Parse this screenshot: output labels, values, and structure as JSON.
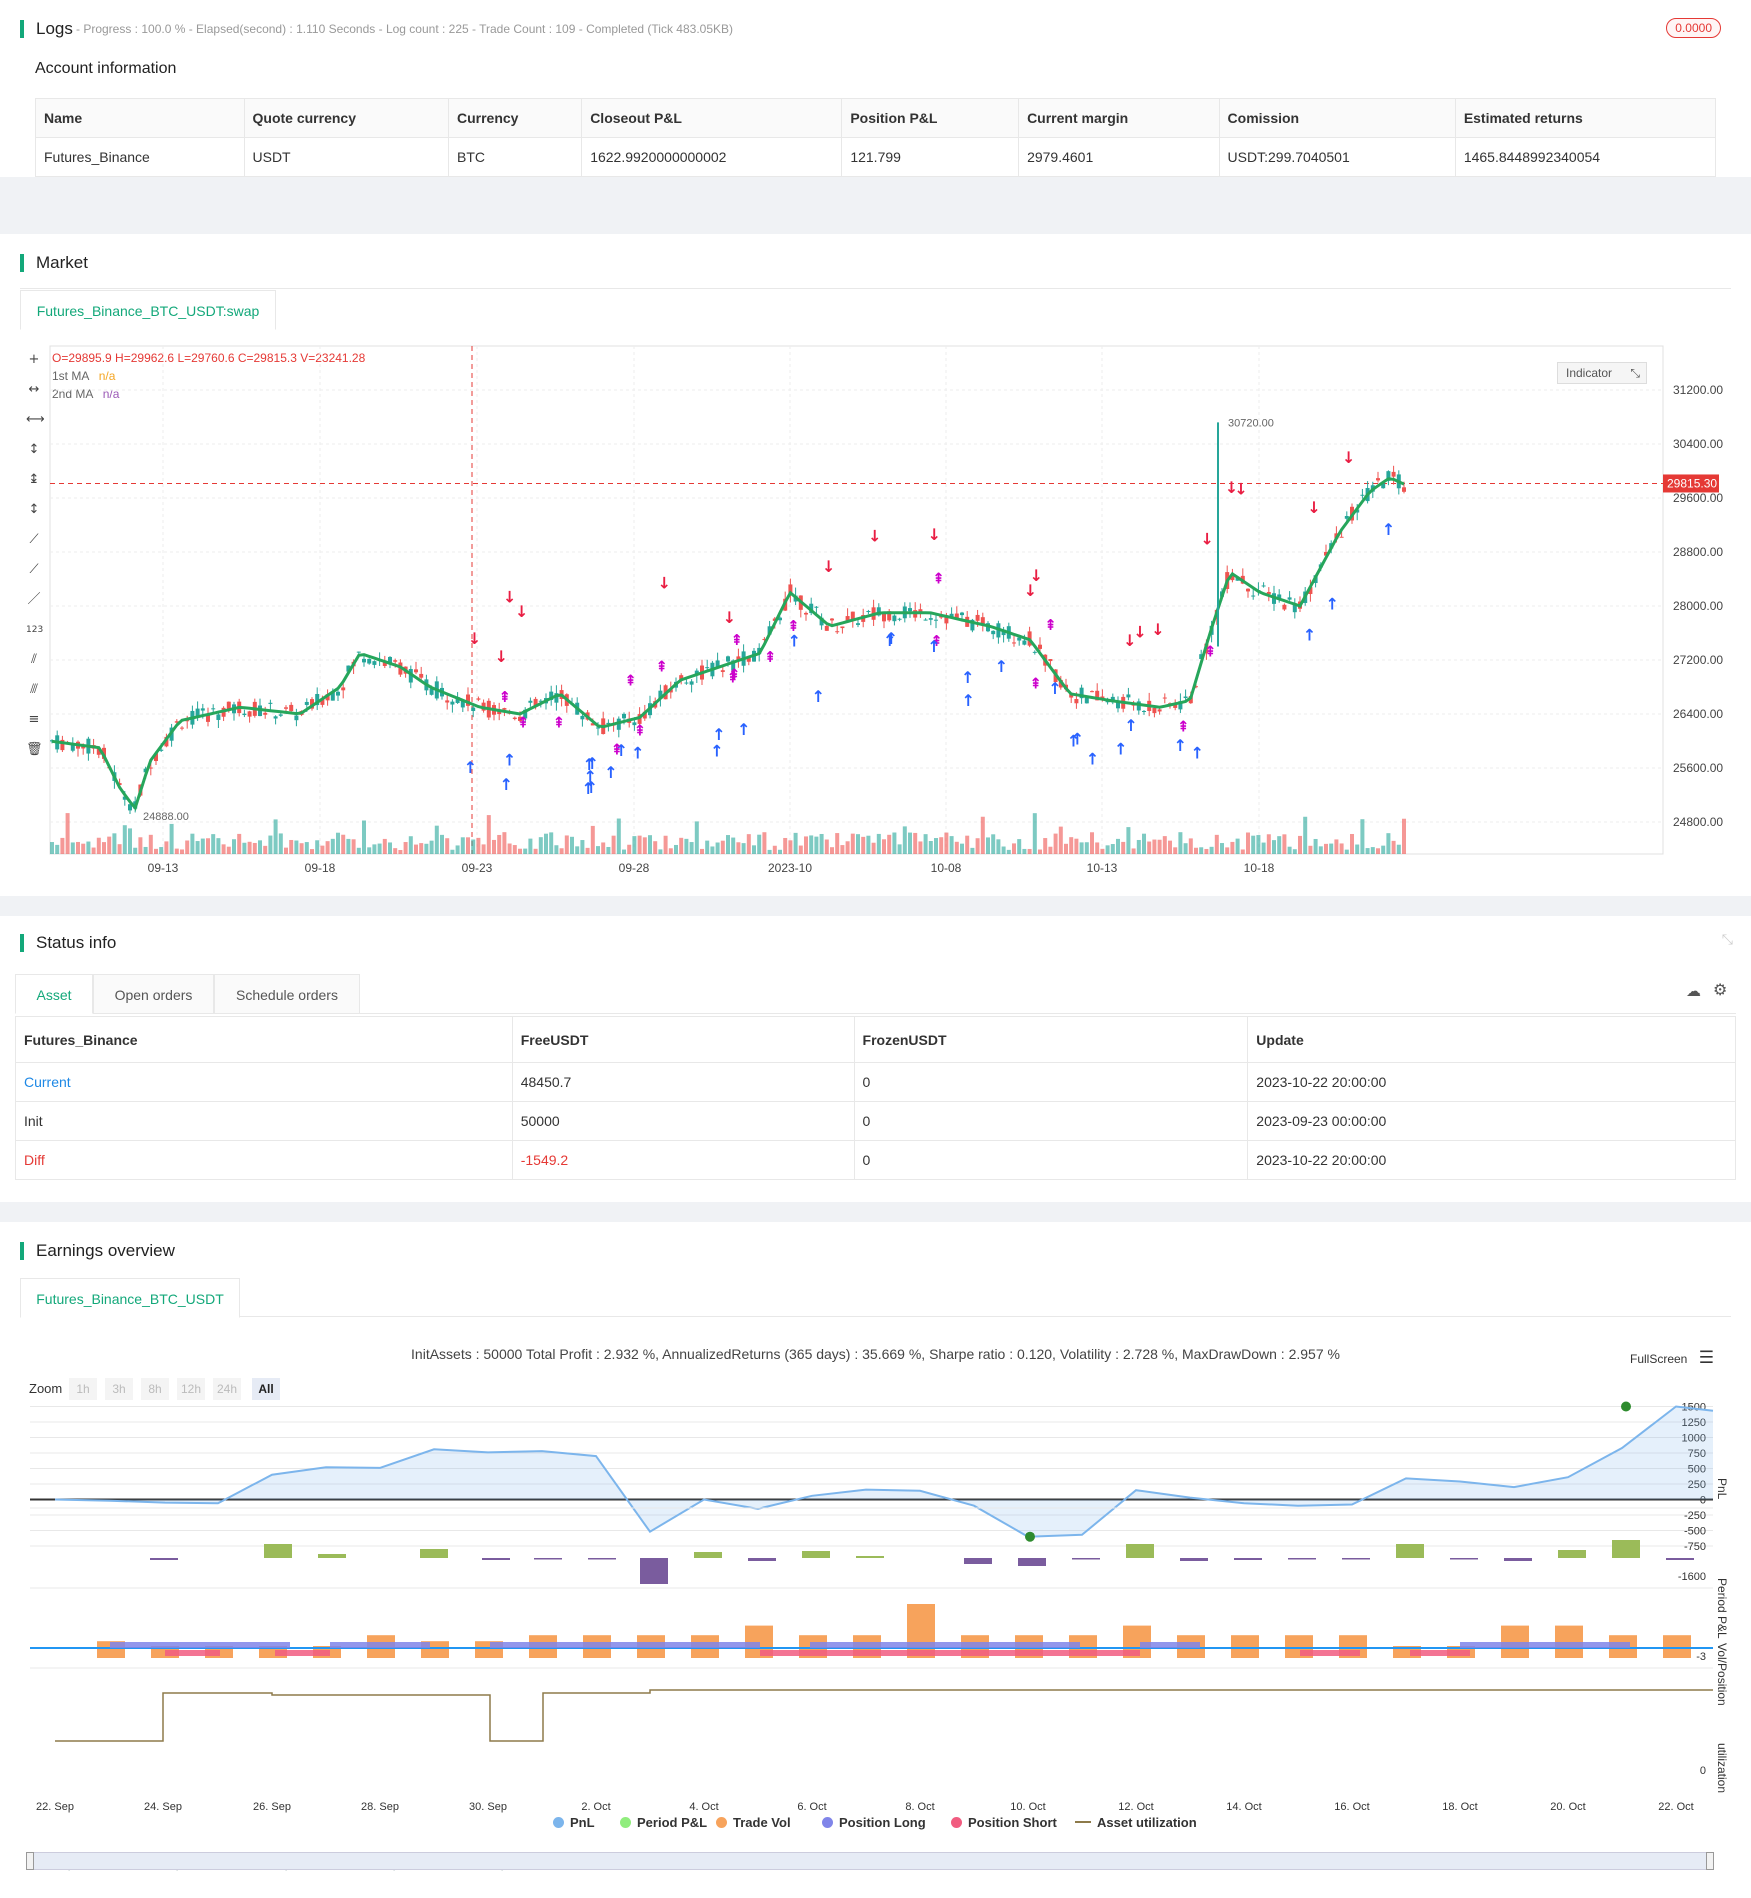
{
  "logs": {
    "title": "Logs",
    "status": "- Progress : 100.0 % - Elapsed(second) : 1.110  Seconds - Log count : 225 - Trade Count : 109 - Completed (Tick 483.05KB)",
    "badge": "0.0000"
  },
  "account": {
    "title": "Account information",
    "headers": [
      "Name",
      "Quote currency",
      "Currency",
      "Closeout P&L",
      "Position P&L",
      "Current margin",
      "Comission",
      "Estimated returns"
    ],
    "row": [
      "Futures_Binance",
      "USDT",
      "BTC",
      "1622.9920000000002",
      "121.799",
      "2979.4601",
      "USDT:299.7040501",
      "1465.8448992340054"
    ]
  },
  "market": {
    "title": "Market",
    "tab": "Futures_Binance_BTC_USDT:swap",
    "ohlc": "O=29895.9 H=29962.6 L=29760.6 C=29815.3 V=23241.28",
    "ma1_label": "1st MA",
    "ma1_value": "n/a",
    "ma2_label": "2nd MA",
    "ma2_value": "n/a",
    "indicator_button": "Indicator",
    "price_ticks": [
      "31200.00",
      "30400.00",
      "29600.00",
      "28800.00",
      "28000.00",
      "27200.00",
      "26400.00",
      "25600.00",
      "24800.00"
    ],
    "current_price": "29815.30",
    "high_label": "30720.00",
    "low_label": "24888.00",
    "date_ticks": [
      "09-13",
      "09-18",
      "09-23",
      "09-28",
      "2023-10",
      "10-08",
      "10-13",
      "10-18"
    ],
    "colors": {
      "up": "#26a69a",
      "down": "#ef5350",
      "ma": "#26a65b",
      "long": "#2962ff",
      "short": "#e91e43",
      "close": "#cc00cc"
    }
  },
  "status": {
    "title": "Status info",
    "tabs": [
      "Asset",
      "Open orders",
      "Schedule orders"
    ],
    "headers": [
      "Futures_Binance",
      "FreeUSDT",
      "FrozenUSDT",
      "Update"
    ],
    "rows": [
      [
        "Current",
        "48450.7",
        "0",
        "2023-10-22 20:00:00"
      ],
      [
        "Init",
        "50000",
        "0",
        "2023-09-23 00:00:00"
      ],
      [
        "Diff",
        "-1549.2",
        "0",
        "2023-10-22 20:00:00"
      ]
    ]
  },
  "earnings": {
    "title": "Earnings overview",
    "tab": "Futures_Binance_BTC_USDT",
    "summary": "InitAssets : 50000 Total Profit : 2.932 %, AnnualizedReturns (365 days) : 35.669 %, Sharpe ratio : 0.120, Volatility : 2.728 %, MaxDrawDown : 2.957 %",
    "fullscreen": "FullScreen",
    "zoom_label": "Zoom",
    "zoom_buttons": [
      "1h",
      "3h",
      "8h",
      "12h",
      "24h",
      "All"
    ],
    "pnl_ticks": [
      "1500",
      "1250",
      "1000",
      "750",
      "500",
      "250",
      "0",
      "-250",
      "-500",
      "-750"
    ],
    "pnl_axis": "PnL",
    "period_axis": "Period P&L",
    "period_tick": "-1600",
    "vol_axis": "Vol/Position",
    "vol_tick": "-3",
    "util_axis": "utilization",
    "util_tick": "0",
    "date_ticks": [
      "22. Sep",
      "24. Sep",
      "26. Sep",
      "28. Sep",
      "30. Sep",
      "2. Oct",
      "4. Oct",
      "6. Oct",
      "8. Oct",
      "10. Oct",
      "12. Oct",
      "14. Oct",
      "16. Oct",
      "18. Oct",
      "20. Oct",
      "22. Oct"
    ],
    "legend": [
      {
        "label": "PnL",
        "color": "#7cb5ec"
      },
      {
        "label": "Period P&L",
        "color": "#90ed7d"
      },
      {
        "label": "Trade Vol",
        "color": "#f7a35c"
      },
      {
        "label": "Position Long",
        "color": "#8085e9"
      },
      {
        "label": "Position Short",
        "color": "#f15c80"
      },
      {
        "label": "Asset utilization",
        "color": "#8d7a4a"
      }
    ]
  }
}
